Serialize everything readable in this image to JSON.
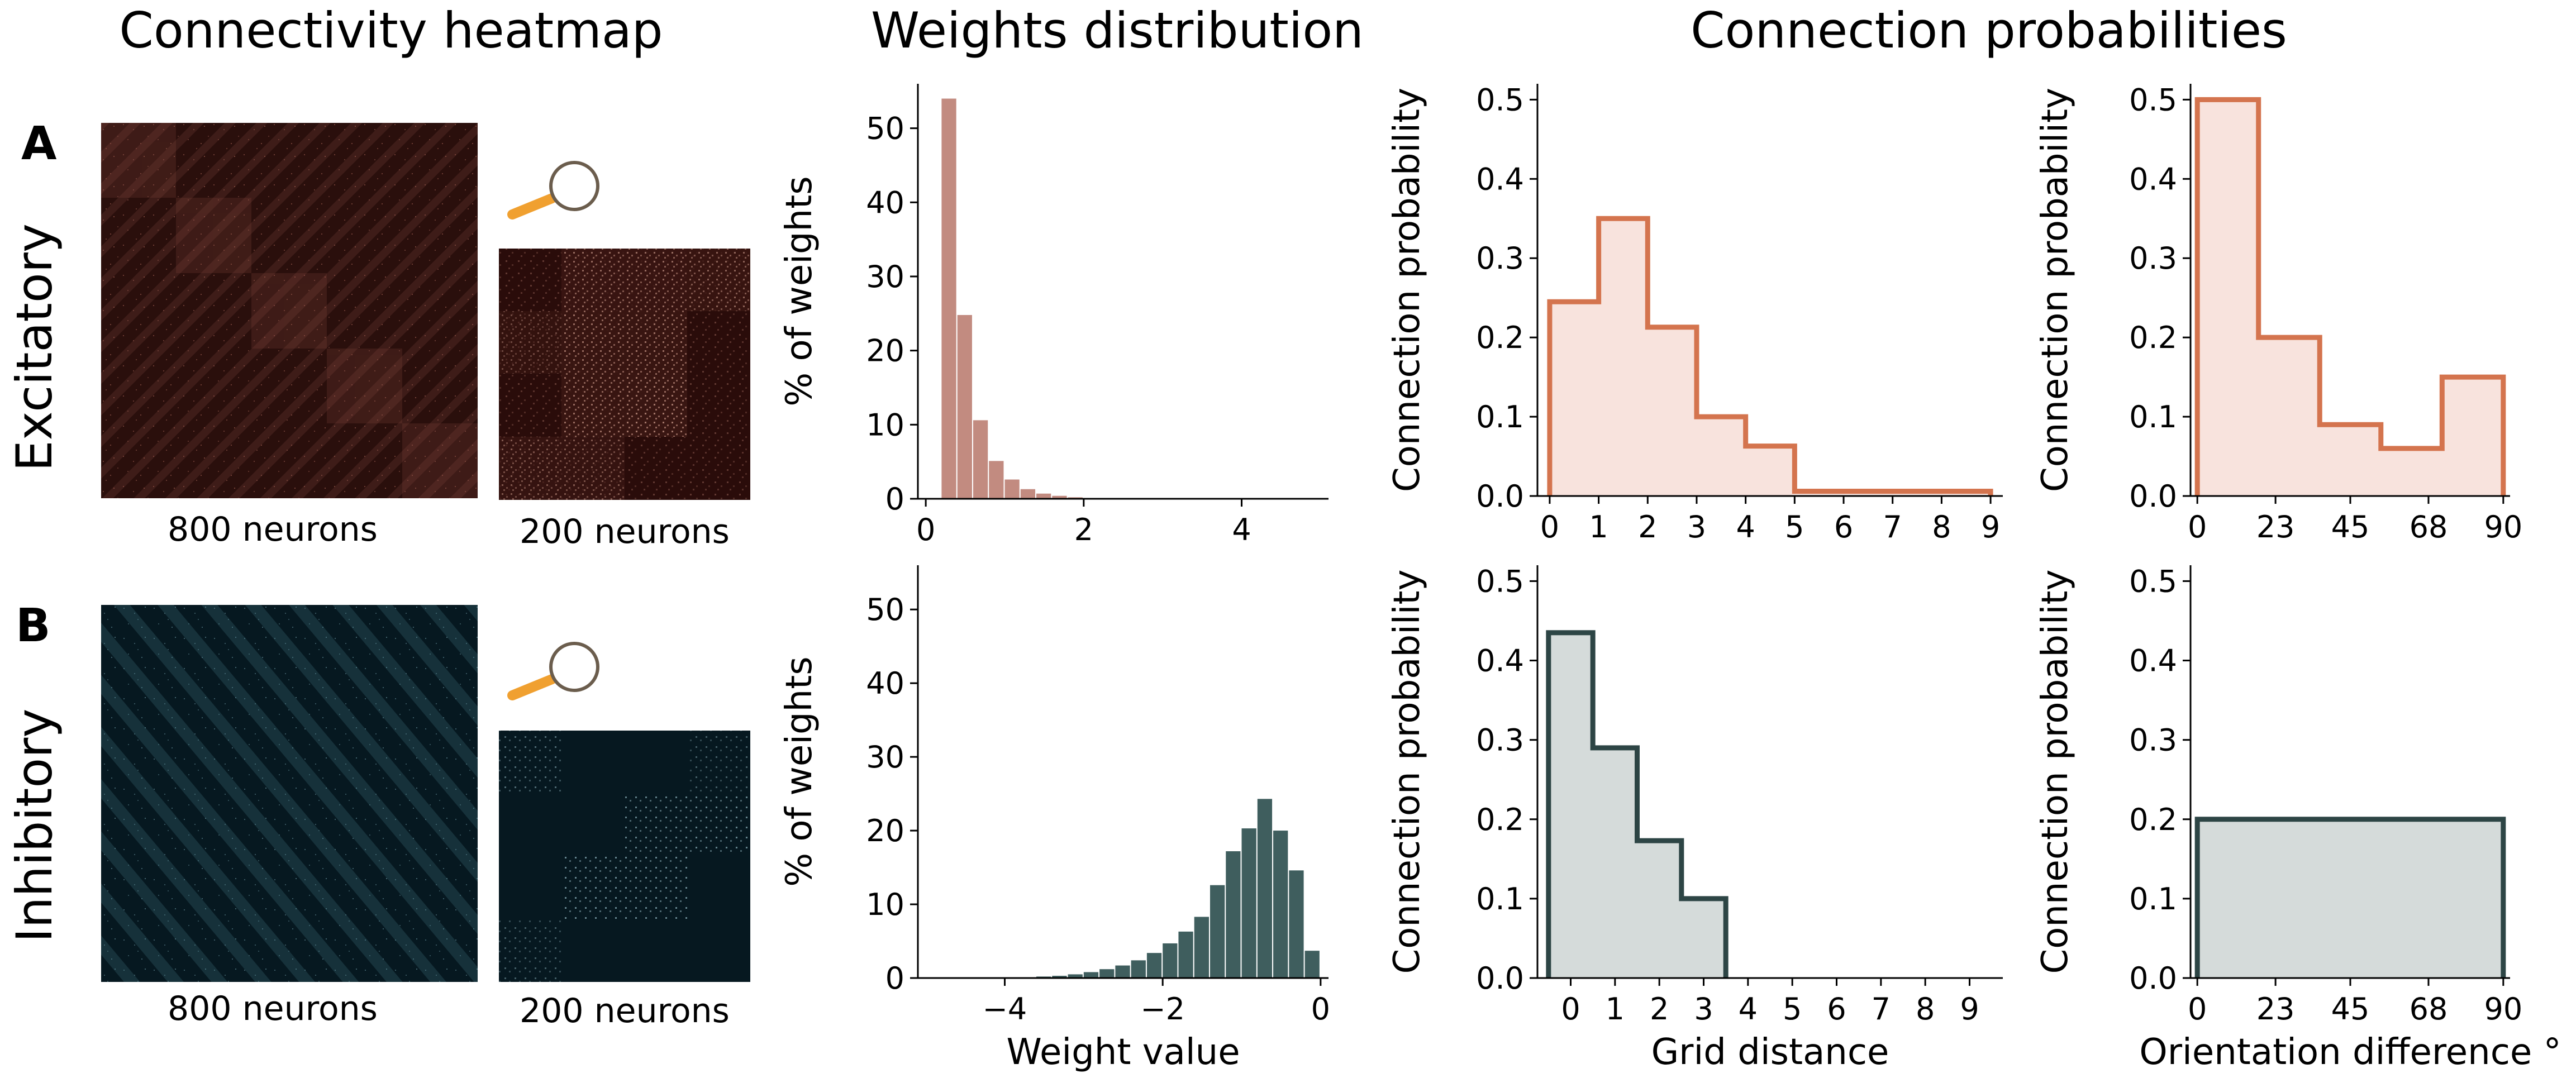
{
  "columns": {
    "heatmap": "Connectivity heatmap",
    "weights": "Weights distribution",
    "probabilities": "Connection probabilities"
  },
  "rows": [
    {
      "letter": "A",
      "label": "Excitatory",
      "full_caption": "800 neurons",
      "zoom_caption": "200 neurons"
    },
    {
      "letter": "B",
      "label": "Inhibitory",
      "full_caption": "800 neurons",
      "zoom_caption": "200 neurons"
    }
  ],
  "colors": {
    "exc_bar": "#c28b80",
    "exc_step": "#d4744e",
    "exc_fill": "#f8e3dd",
    "inh_bar": "#3f5e5e",
    "inh_step": "#2d4545",
    "inh_fill": "#d5dbda",
    "exc_heat_bg": "#2a0f0c",
    "exc_heat_fg": "#b06a5a",
    "inh_heat_bg": "#061820",
    "inh_heat_fg": "#7fb0bc",
    "magnifier_handle": "#f0a030",
    "magnifier_ring": "#6b5d4d"
  },
  "chart_data": [
    {
      "id": "exc-weights",
      "type": "bar",
      "series_role": "excitatory",
      "bin_width": 0.2,
      "x": [
        0.3,
        0.5,
        0.7,
        0.9,
        1.1,
        1.3,
        1.5,
        1.7,
        1.9,
        2.1,
        2.3
      ],
      "values": [
        54,
        24.8,
        10.6,
        5.1,
        2.6,
        1.3,
        0.7,
        0.4,
        0.2,
        0.1,
        0.05
      ],
      "xlim": [
        -0.1,
        5.1
      ],
      "ylim": [
        0,
        56
      ],
      "xticks": [
        0,
        2,
        4
      ],
      "yticks": [
        0,
        10,
        20,
        30,
        40,
        50
      ],
      "xlabel": "",
      "ylabel": "% of weights"
    },
    {
      "id": "inh-weights",
      "type": "bar",
      "series_role": "inhibitory",
      "bin_width": 0.2,
      "x": [
        -3.9,
        -3.7,
        -3.5,
        -3.3,
        -3.1,
        -2.9,
        -2.7,
        -2.5,
        -2.3,
        -2.1,
        -1.9,
        -1.7,
        -1.5,
        -1.3,
        -1.1,
        -0.9,
        -0.7,
        -0.5,
        -0.3,
        -0.1
      ],
      "values": [
        0.05,
        0.1,
        0.2,
        0.3,
        0.5,
        0.8,
        1.2,
        1.7,
        2.4,
        3.4,
        4.7,
        6.3,
        8.3,
        12.6,
        17.2,
        20.3,
        24.3,
        20.0,
        14.6,
        3.7
      ],
      "xlim": [
        -5.1,
        0.1
      ],
      "ylim": [
        0,
        56
      ],
      "xticks": [
        -4,
        -2,
        0
      ],
      "yticks": [
        0,
        10,
        20,
        30,
        40,
        50
      ],
      "xlabel": "Weight value",
      "ylabel": "% of weights"
    },
    {
      "id": "exc-grid",
      "type": "area",
      "series_role": "excitatory",
      "bin_edges": [
        0,
        1,
        2,
        3,
        4,
        5,
        6,
        7,
        8,
        9
      ],
      "values": [
        0.245,
        0.35,
        0.213,
        0.1,
        0.063,
        0.006,
        0.006,
        0.006,
        0.006
      ],
      "xlim": [
        -0.25,
        9.25
      ],
      "ylim": [
        0,
        0.52
      ],
      "xticks": [
        0,
        1,
        2,
        3,
        4,
        5,
        6,
        7,
        8,
        9
      ],
      "yticks": [
        0.0,
        0.1,
        0.2,
        0.3,
        0.4,
        0.5
      ],
      "xlabel": "",
      "ylabel": "Connection probability"
    },
    {
      "id": "inh-grid",
      "type": "area",
      "series_role": "inhibitory",
      "bin_edges": [
        -0.5,
        0.5,
        1.5,
        2.5,
        3.5
      ],
      "values": [
        0.435,
        0.29,
        0.173,
        0.1
      ],
      "xlim": [
        -0.75,
        9.75
      ],
      "ylim": [
        0,
        0.52
      ],
      "xticks": [
        0,
        1,
        2,
        3,
        4,
        5,
        6,
        7,
        8,
        9
      ],
      "yticks": [
        0.0,
        0.1,
        0.2,
        0.3,
        0.4,
        0.5
      ],
      "xlabel": "Grid distance",
      "ylabel": "Connection probability"
    },
    {
      "id": "exc-orient",
      "type": "area",
      "series_role": "excitatory",
      "bin_edges": [
        0,
        18,
        36,
        54,
        72,
        90
      ],
      "values": [
        0.5,
        0.2,
        0.09,
        0.06,
        0.15
      ],
      "xlim": [
        -2,
        92
      ],
      "ylim": [
        0,
        0.52
      ],
      "xticks": [
        0,
        23,
        45,
        68,
        90
      ],
      "yticks": [
        0.0,
        0.1,
        0.2,
        0.3,
        0.4,
        0.5
      ],
      "xlabel": "",
      "ylabel": "Connection probability"
    },
    {
      "id": "inh-orient",
      "type": "area",
      "series_role": "inhibitory",
      "bin_edges": [
        0,
        90
      ],
      "values": [
        0.2
      ],
      "xlim": [
        -2,
        92
      ],
      "ylim": [
        0,
        0.52
      ],
      "xticks": [
        0,
        23,
        45,
        68,
        90
      ],
      "yticks": [
        0.0,
        0.1,
        0.2,
        0.3,
        0.4,
        0.5
      ],
      "xlabel": "Orientation difference °",
      "ylabel": "Connection probability"
    }
  ]
}
